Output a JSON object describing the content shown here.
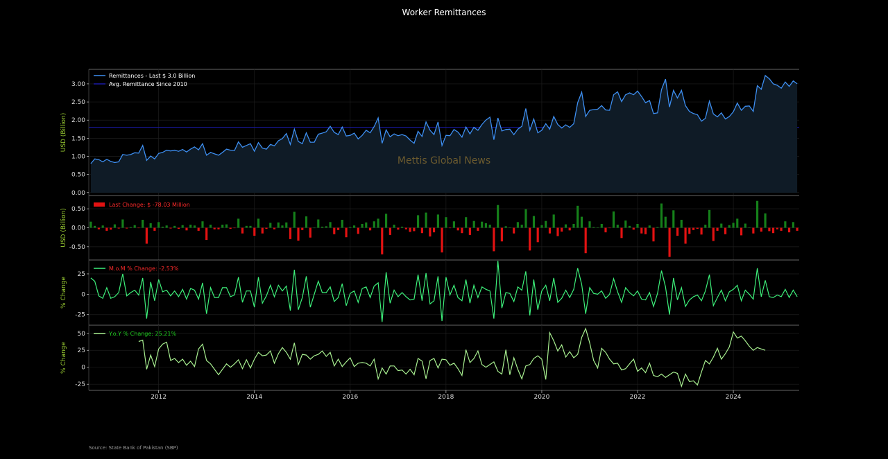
{
  "title": "Worker Remittances",
  "source": "Source: State Bank of Pakistan (SBP)",
  "watermark": "Mettis Global News",
  "colors": {
    "background": "#000000",
    "remittance_line": "#3d8ef0",
    "remittance_fill": "#0f1b26",
    "avg_line": "#1a1aa8",
    "bar_positive": "#15801a",
    "bar_negative": "#e31212",
    "mom_line": "#3df07a",
    "yoy_line": "#a8ef90",
    "ylabel": "#9acd32",
    "red_label": "#ff2b2b",
    "green_label": "#1fcf1f"
  },
  "chart_data": [
    {
      "type": "area",
      "ylabel": "USD (Billion)",
      "ylim": [
        -0.08,
        3.4
      ],
      "yticks": [
        "0.00",
        "0.50",
        "1.00",
        "1.50",
        "2.00",
        "2.50",
        "3.00"
      ],
      "x_start": "2010-08",
      "x_end": "2025-02",
      "xticks": [
        "2012",
        "2014",
        "2016",
        "2018",
        "2020",
        "2022",
        "2024"
      ],
      "legend": [
        "Remittances - Last $ 3.0 Billion",
        "Avg. Remittance Since 2010"
      ],
      "avg_value": 1.8,
      "values": [
        0.8,
        0.93,
        0.91,
        0.85,
        0.92,
        0.86,
        0.83,
        0.85,
        1.05,
        1.03,
        1.05,
        1.1,
        1.09,
        1.3,
        0.89,
        1.01,
        0.93,
        1.08,
        1.11,
        1.17,
        1.15,
        1.17,
        1.14,
        1.19,
        1.12,
        1.2,
        1.26,
        1.18,
        1.35,
        1.03,
        1.11,
        1.07,
        1.03,
        1.11,
        1.2,
        1.17,
        1.16,
        1.4,
        1.25,
        1.3,
        1.35,
        1.14,
        1.38,
        1.23,
        1.2,
        1.33,
        1.29,
        1.43,
        1.49,
        1.63,
        1.33,
        1.75,
        1.41,
        1.35,
        1.65,
        1.39,
        1.39,
        1.61,
        1.64,
        1.68,
        1.83,
        1.66,
        1.6,
        1.81,
        1.56,
        1.58,
        1.64,
        1.48,
        1.58,
        1.72,
        1.65,
        1.82,
        2.06,
        1.36,
        1.73,
        1.54,
        1.62,
        1.57,
        1.6,
        1.56,
        1.45,
        1.36,
        1.69,
        1.55,
        1.95,
        1.72,
        1.6,
        1.95,
        1.3,
        1.58,
        1.57,
        1.74,
        1.67,
        1.53,
        1.81,
        1.62,
        1.8,
        1.72,
        1.88,
        2.0,
        2.08,
        1.46,
        2.06,
        1.7,
        1.74,
        1.75,
        1.6,
        1.75,
        1.83,
        2.32,
        1.72,
        2.03,
        1.65,
        1.72,
        1.9,
        1.75,
        2.1,
        1.88,
        1.78,
        1.87,
        1.8,
        1.9,
        2.48,
        2.77,
        2.1,
        2.27,
        2.29,
        2.3,
        2.4,
        2.28,
        2.27,
        2.7,
        2.78,
        2.51,
        2.7,
        2.75,
        2.7,
        2.8,
        2.65,
        2.48,
        2.54,
        2.18,
        2.2,
        2.84,
        3.13,
        2.36,
        2.82,
        2.61,
        2.82,
        2.4,
        2.24,
        2.18,
        2.15,
        1.97,
        2.05,
        2.52,
        2.17,
        2.09,
        2.2,
        2.03,
        2.1,
        2.23,
        2.47,
        2.27,
        2.38,
        2.39,
        2.24,
        2.95,
        2.85,
        3.23,
        3.14,
        3.0,
        2.96,
        2.88,
        3.05,
        2.93,
        3.08,
        3.0
      ]
    },
    {
      "type": "bar",
      "ylabel": "USD (Billion)",
      "ylim": [
        -0.85,
        0.85
      ],
      "yticks": [
        "-0.50",
        "0.00",
        "0.50"
      ],
      "legend": [
        "Last Change: $ -78.03 Million"
      ],
      "values": [
        0.16,
        0.05,
        -0.04,
        0.06,
        -0.08,
        -0.05,
        0.09,
        -0.02,
        0.22,
        -0.02,
        0.02,
        0.07,
        -0.01,
        0.21,
        -0.42,
        0.12,
        -0.08,
        0.15,
        0.03,
        0.06,
        -0.02,
        0.05,
        -0.03,
        0.07,
        -0.07,
        0.08,
        0.06,
        -0.08,
        0.17,
        -0.32,
        0.08,
        -0.04,
        -0.04,
        0.08,
        0.09,
        -0.03,
        -0.01,
        0.24,
        -0.15,
        0.05,
        0.05,
        -0.21,
        0.24,
        -0.15,
        -0.03,
        0.13,
        -0.04,
        0.14,
        0.06,
        0.14,
        -0.3,
        0.42,
        -0.34,
        -0.06,
        0.3,
        -0.26,
        0.0,
        0.22,
        0.03,
        0.04,
        0.15,
        -0.17,
        -0.06,
        0.21,
        -0.25,
        0.02,
        0.06,
        -0.16,
        0.1,
        0.14,
        -0.07,
        0.17,
        0.24,
        -0.7,
        0.37,
        -0.19,
        0.08,
        -0.05,
        0.03,
        -0.04,
        -0.11,
        -0.09,
        0.33,
        -0.14,
        0.4,
        -0.23,
        -0.12,
        0.35,
        -0.65,
        0.28,
        -0.01,
        0.17,
        -0.07,
        -0.14,
        0.28,
        -0.19,
        0.18,
        -0.08,
        0.16,
        0.12,
        0.08,
        -0.62,
        0.6,
        -0.36,
        0.04,
        0.01,
        -0.15,
        0.15,
        0.08,
        0.49,
        -0.6,
        0.31,
        -0.38,
        0.07,
        0.18,
        -0.15,
        0.35,
        -0.22,
        -0.1,
        0.09,
        -0.07,
        0.1,
        0.58,
        0.29,
        -0.67,
        0.17,
        0.02,
        0.01,
        0.1,
        -0.12,
        -0.01,
        0.43,
        0.08,
        -0.27,
        0.19,
        0.05,
        -0.05,
        0.1,
        -0.15,
        -0.17,
        0.06,
        -0.36,
        0.02,
        0.64,
        0.29,
        -0.77,
        0.46,
        -0.21,
        0.21,
        -0.42,
        -0.16,
        -0.06,
        -0.03,
        -0.18,
        0.08,
        0.47,
        -0.35,
        -0.08,
        0.11,
        -0.17,
        0.07,
        0.13,
        0.24,
        -0.2,
        0.11,
        0.01,
        -0.15,
        0.71,
        -0.1,
        0.38,
        -0.09,
        -0.14,
        -0.04,
        -0.08,
        0.17,
        -0.12,
        0.15,
        -0.08
      ]
    },
    {
      "type": "line",
      "ylabel": "% Change",
      "ylim": [
        -38,
        42
      ],
      "yticks": [
        "-25",
        "0",
        "25"
      ],
      "legend": [
        "M.o.M % Change: -2.53%"
      ],
      "values": [
        20,
        16,
        -2,
        -5,
        8,
        -5,
        -3,
        2,
        25,
        -2,
        2,
        5,
        -1,
        20,
        -30,
        15,
        -8,
        18,
        3,
        5,
        -2,
        4,
        -3,
        6,
        -6,
        7,
        5,
        -6,
        14,
        -24,
        8,
        -4,
        -4,
        8,
        8,
        -3,
        -1,
        21,
        -10,
        4,
        4,
        -16,
        21,
        -11,
        -2,
        11,
        -3,
        11,
        4,
        10,
        -20,
        30,
        -19,
        -4,
        22,
        -16,
        0,
        16,
        2,
        2,
        9,
        -9,
        -4,
        13,
        -14,
        1,
        4,
        -10,
        7,
        9,
        -4,
        10,
        14,
        -34,
        27,
        -11,
        5,
        -3,
        2,
        -3,
        -7,
        -6,
        24,
        -8,
        26,
        -12,
        -8,
        22,
        -33,
        21,
        -1,
        11,
        -4,
        -8,
        18,
        -11,
        11,
        -4,
        9,
        6,
        4,
        -30,
        41,
        -17,
        2,
        1,
        -9,
        9,
        5,
        28,
        -26,
        18,
        -19,
        4,
        11,
        -8,
        20,
        -10,
        -5,
        5,
        -4,
        6,
        32,
        12,
        -24,
        8,
        1,
        0,
        4,
        -5,
        0,
        19,
        3,
        -10,
        8,
        2,
        -2,
        4,
        -6,
        -7,
        2,
        -15,
        1,
        29,
        9,
        -25,
        20,
        -7,
        8,
        -15,
        -7,
        -3,
        -1,
        -8,
        4,
        24,
        -14,
        -4,
        5,
        -8,
        3,
        6,
        11,
        -8,
        5,
        0,
        -6,
        32,
        -3,
        17,
        -3,
        -4,
        -1,
        -3,
        6,
        -4,
        5,
        -3
      ]
    },
    {
      "type": "line",
      "ylabel": "% Change",
      "ylim": [
        -34,
        62
      ],
      "yticks": [
        "-25",
        "0",
        "25",
        "50"
      ],
      "legend": [
        "Y.o.Y % Change: 25.21%"
      ],
      "start_index": 12,
      "values": [
        null,
        null,
        null,
        null,
        null,
        null,
        null,
        null,
        null,
        null,
        null,
        null,
        38,
        40,
        -3,
        18,
        1,
        27,
        34,
        37,
        10,
        13,
        7,
        12,
        3,
        9,
        1,
        27,
        34,
        10,
        5,
        -3,
        -11,
        -3,
        5,
        0,
        5,
        11,
        -2,
        11,
        -1,
        12,
        22,
        17,
        18,
        24,
        6,
        20,
        29,
        22,
        12,
        36,
        4,
        19,
        18,
        12,
        17,
        19,
        24,
        16,
        22,
        2,
        12,
        1,
        8,
        14,
        1,
        6,
        7,
        6,
        2,
        12,
        -17,
        -1,
        -10,
        2,
        2,
        -5,
        -4,
        -10,
        -3,
        -11,
        13,
        9,
        -17,
        10,
        13,
        -1,
        12,
        11,
        3,
        6,
        -2,
        -12,
        26,
        7,
        13,
        24,
        4,
        0,
        4,
        8,
        -6,
        -10,
        26,
        -11,
        14,
        -3,
        -17,
        2,
        4,
        13,
        17,
        12,
        -18,
        51,
        39,
        24,
        33,
        15,
        23,
        14,
        19,
        44,
        57,
        36,
        10,
        -1,
        28,
        22,
        12,
        5,
        6,
        -4,
        -2,
        5,
        12,
        -6,
        -1,
        -8,
        6,
        -12,
        -14,
        -10,
        -15,
        -11,
        -7,
        -9,
        -28,
        -10,
        -21,
        -20,
        -26,
        -7,
        10,
        5,
        15,
        28,
        12,
        20,
        30,
        52,
        43,
        46,
        39,
        31,
        25,
        29,
        27,
        25
      ]
    }
  ]
}
